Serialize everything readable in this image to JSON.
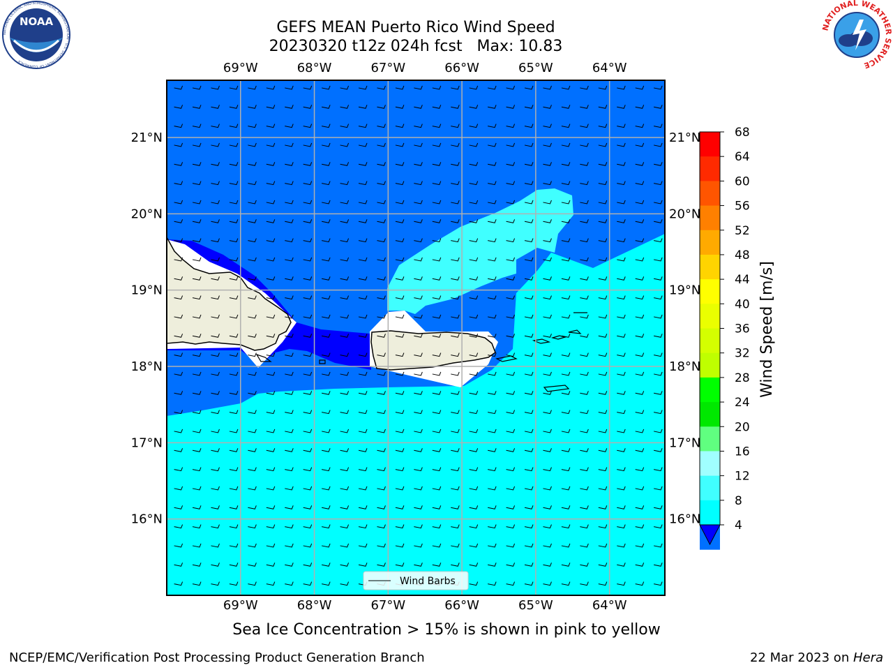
{
  "title": {
    "line1": "GEFS MEAN Puerto Rico Wind Speed",
    "line2": "20230320 t12z 024h fcst   Max: 10.83"
  },
  "subtitle": "Sea Ice Concentration > 15% is shown in pink to yellow",
  "footer": {
    "left": "NCEP/EMC/Verification Post Processing Product Generation Branch",
    "date": "22 Mar 2023 on ",
    "host": "Hera"
  },
  "logos": {
    "left": "NOAA",
    "left_ring": "NATIONAL OCEANIC AND ATMOSPHERIC ADMINISTRATION · U.S. DEPARTMENT OF COMMERCE",
    "right_ring": "NATIONAL WEATHER SERVICE"
  },
  "map": {
    "lon_labels": [
      "69°W",
      "68°W",
      "67°W",
      "66°W",
      "65°W",
      "64°W"
    ],
    "lat_labels": [
      "21°N",
      "20°N",
      "19°N",
      "18°N",
      "17°N",
      "16°N"
    ],
    "lon_values": [
      -69,
      -68,
      -67,
      -66,
      -65,
      -64
    ],
    "lat_values": [
      21,
      20,
      19,
      18,
      17,
      16
    ],
    "lon_range": [
      -70.0,
      -63.25
    ],
    "lat_range": [
      15.0,
      21.75
    ],
    "grid": true,
    "legend": {
      "label": "Wind Barbs",
      "placement": "bottom-center"
    },
    "wind_barb_direction": "easterly",
    "colors": {
      "land": "#eeeedc",
      "band_4_8": "#0070ff",
      "band_0_4": "#0000ff",
      "band_8_12": "#00ffff",
      "band_12_16": "#40ffff"
    }
  },
  "colorbar": {
    "label": "Wind Speed [m/s]",
    "ticks": [
      "68",
      "64",
      "60",
      "56",
      "52",
      "48",
      "44",
      "40",
      "36",
      "32",
      "28",
      "24",
      "20",
      "16",
      "12",
      "8",
      "4"
    ],
    "colors_top_to_bottom": [
      "#ff0000",
      "#ff2a00",
      "#ff5500",
      "#ff8000",
      "#ffaa00",
      "#ffd400",
      "#ffff00",
      "#eaff00",
      "#d4ff00",
      "#bfff00",
      "#00ff00",
      "#00e800",
      "#60ff80",
      "#a0ffff",
      "#40ffff",
      "#00ffff",
      "#0070ff"
    ],
    "extend_color": "#0000ff"
  }
}
